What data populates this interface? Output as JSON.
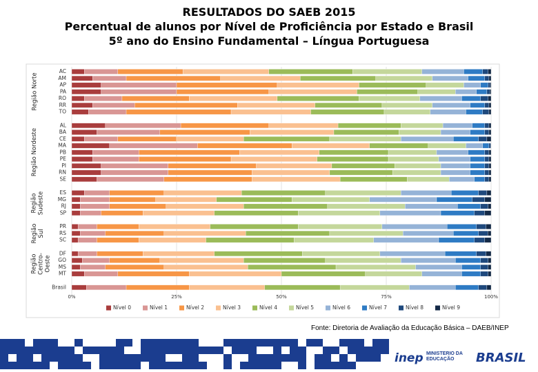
{
  "chart_data": {
    "type": "stacked_barh",
    "title": "RESULTADOS DO SAEB 2015",
    "subtitle": "Percentual de alunos por Nível de Proficiência por Estado e Brasil",
    "subtitle2": "5º ano do Ensino Fundamental – Língua Portuguesa",
    "source": "Fonte: Diretoria de Avaliação da Educação Básica – DAEB/INEP",
    "footer": {
      "logo_inep": "inep",
      "ministry": "MINISTÉRIO DA EDUCAÇÃO",
      "brasil": "BRASIL"
    },
    "groups": [
      {
        "label": "Região Norte",
        "categories": [
          "AC",
          "AM",
          "AP",
          "PA",
          "RO",
          "RR",
          "TO"
        ]
      },
      {
        "label": "Região Nordeste",
        "categories": [
          "AL",
          "BA",
          "CE",
          "MA",
          "PB",
          "PE",
          "PI",
          "RN",
          "SE"
        ]
      },
      {
        "label": "Região Sudeste",
        "categories": [
          "ES",
          "MG",
          "RJ",
          "SP"
        ]
      },
      {
        "label": "Região Sul",
        "categories": [
          "PR",
          "RS",
          "SC"
        ]
      },
      {
        "label": "Região Centro-Oeste",
        "categories": [
          "DF",
          "GO",
          "MS",
          "MT"
        ]
      },
      {
        "categories": [
          "Brasil"
        ]
      }
    ],
    "xlim": [
      0,
      100
    ],
    "xticks": [
      {
        "value": 0,
        "label": "0%"
      },
      {
        "value": 25,
        "label": "25%"
      },
      {
        "value": 50,
        "label": "50%"
      },
      {
        "value": 75,
        "label": "75%"
      },
      {
        "value": 100,
        "label": "100%"
      }
    ],
    "grid": true,
    "legend": "bottom",
    "series": [
      {
        "name": "Nível 0",
        "color": "#a93d3d",
        "values": [
          3,
          5,
          7,
          7,
          3,
          5,
          4,
          8,
          6,
          3,
          9,
          5,
          5,
          7,
          7,
          6,
          3,
          2,
          2,
          2,
          1.5,
          2,
          1.5,
          1.5,
          2.5,
          2,
          3,
          3.5
        ]
      },
      {
        "name": "Nível 1",
        "color": "#d99694",
        "values": [
          8,
          8,
          18,
          18,
          9,
          10,
          9,
          18,
          15,
          8,
          21,
          11,
          11,
          16,
          16,
          16,
          6,
          7,
          7,
          5,
          4.5,
          6,
          4.5,
          4.5,
          6.5,
          6,
          8,
          9.5
        ]
      },
      {
        "name": "Nível 2",
        "color": "#f79646",
        "values": [
          15.5,
          22.5,
          24,
          22,
          16,
          24.5,
          25,
          21,
          21.5,
          14,
          22.5,
          24,
          22,
          21,
          20,
          21,
          13,
          11,
          13.5,
          10,
          10,
          14,
          10,
          11,
          12,
          14,
          17,
          15
        ]
      },
      {
        "name": "Nível 3",
        "color": "#fac090",
        "values": [
          20.5,
          19,
          19.5,
          21,
          21,
          18.5,
          19,
          16.5,
          20,
          16,
          18.5,
          19,
          20.5,
          18,
          18.5,
          21,
          18.5,
          14.5,
          18.5,
          17,
          17,
          19.5,
          16,
          17,
          20,
          20,
          22,
          18
        ]
      },
      {
        "name": "Nível 4",
        "color": "#9bbb59",
        "values": [
          20,
          18,
          16,
          14.5,
          19.5,
          16,
          17.5,
          15,
          15.5,
          20.5,
          14,
          16.5,
          17,
          15,
          15,
          16,
          20,
          18,
          20,
          20,
          21,
          20,
          21,
          21,
          19.5,
          21,
          20,
          18
        ]
      },
      {
        "name": "Nível 5",
        "color": "#c4d79b",
        "values": [
          16.5,
          13.5,
          9,
          9,
          14.5,
          12,
          11,
          10,
          10,
          17,
          9,
          11.5,
          12,
          11,
          11.5,
          10,
          18,
          18.5,
          18.5,
          19.5,
          20,
          17.5,
          19,
          18.5,
          18,
          19,
          13.5,
          16.5
        ]
      },
      {
        "name": "Nível 6",
        "color": "#95b3d7",
        "values": [
          10,
          8.5,
          4,
          5,
          10,
          9,
          8.5,
          7,
          7,
          12.5,
          4,
          7.5,
          7.5,
          7,
          7,
          6,
          12,
          16,
          12.5,
          14.5,
          15.5,
          12,
          15.5,
          15.5,
          13,
          11,
          9.5,
          11
        ]
      },
      {
        "name": "Nível 7",
        "color": "#2e7bc4",
        "values": [
          4.5,
          4,
          1.8,
          2.5,
          4.5,
          3.5,
          4,
          3,
          3.5,
          6,
          1.5,
          4,
          3.5,
          3.5,
          3.5,
          2.5,
          6.5,
          8.5,
          5.5,
          8,
          7,
          6,
          8.5,
          7.5,
          6,
          4.5,
          4.5,
          5.5
        ]
      },
      {
        "name": "Nível 8",
        "color": "#1f497d",
        "values": [
          1.3,
          1,
          0.5,
          0.7,
          1.8,
          1,
          1.5,
          1,
          1,
          2,
          0.4,
          1,
          1,
          1,
          1,
          1,
          2,
          3,
          1.8,
          2.5,
          2.3,
          2.2,
          2.5,
          2.3,
          1.8,
          1.8,
          1.8,
          2
        ]
      },
      {
        "name": "Nível 9",
        "color": "#142a47",
        "values": [
          0.7,
          0.5,
          0.2,
          0.3,
          0.7,
          0.5,
          0.5,
          0.5,
          0.5,
          1,
          0.1,
          0.5,
          0.5,
          0.5,
          0.5,
          0.5,
          1,
          1.5,
          0.7,
          1.5,
          1.2,
          0.8,
          1.5,
          1.2,
          0.7,
          0.7,
          0.7,
          1
        ]
      }
    ]
  }
}
